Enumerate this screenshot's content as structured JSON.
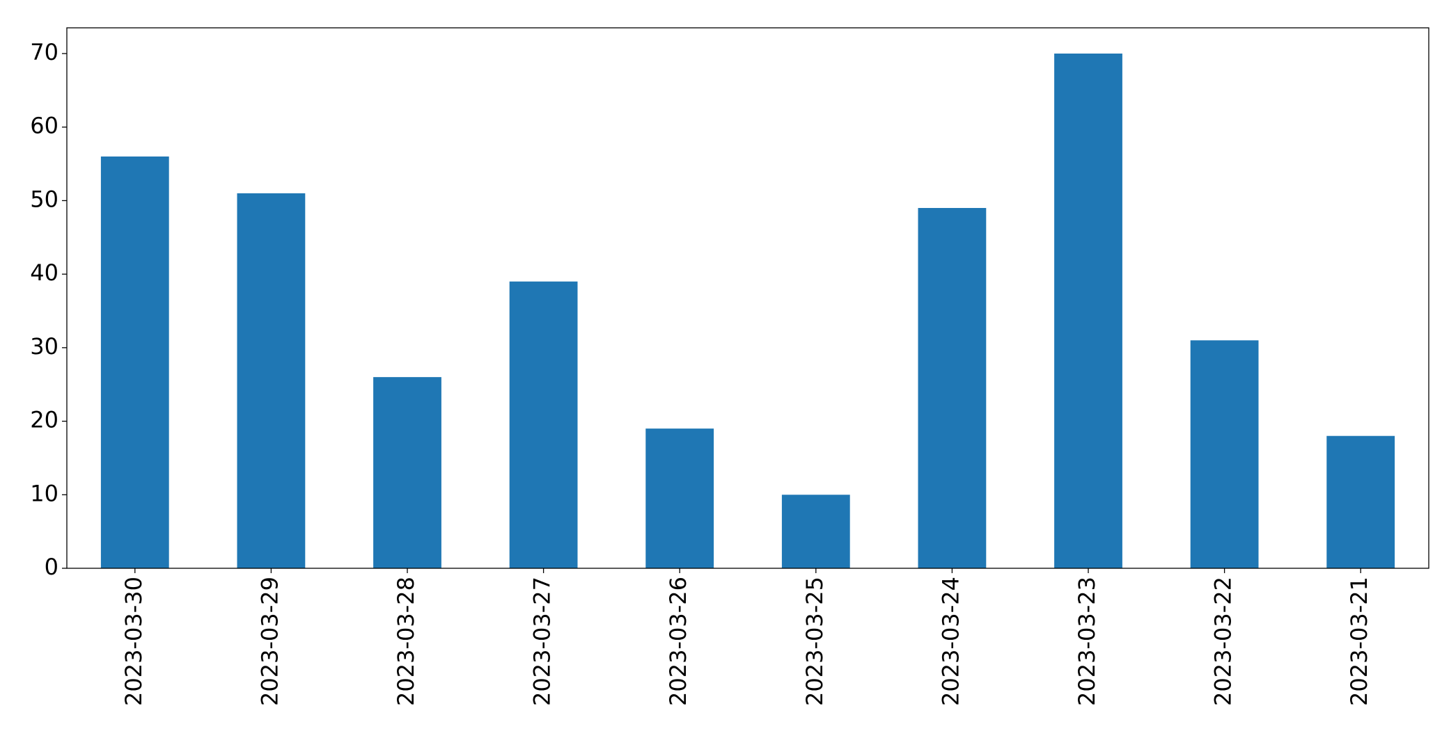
{
  "chart_data": {
    "type": "bar",
    "categories": [
      "2023-03-30",
      "2023-03-29",
      "2023-03-28",
      "2023-03-27",
      "2023-03-26",
      "2023-03-25",
      "2023-03-24",
      "2023-03-23",
      "2023-03-22",
      "2023-03-21"
    ],
    "values": [
      56,
      51,
      26,
      39,
      19,
      10,
      49,
      70,
      31,
      18
    ],
    "color": "#1f77b4",
    "ylim": [
      0,
      73.5
    ],
    "yticks": [
      0,
      10,
      20,
      30,
      40,
      50,
      60,
      70
    ],
    "grid": false
  }
}
